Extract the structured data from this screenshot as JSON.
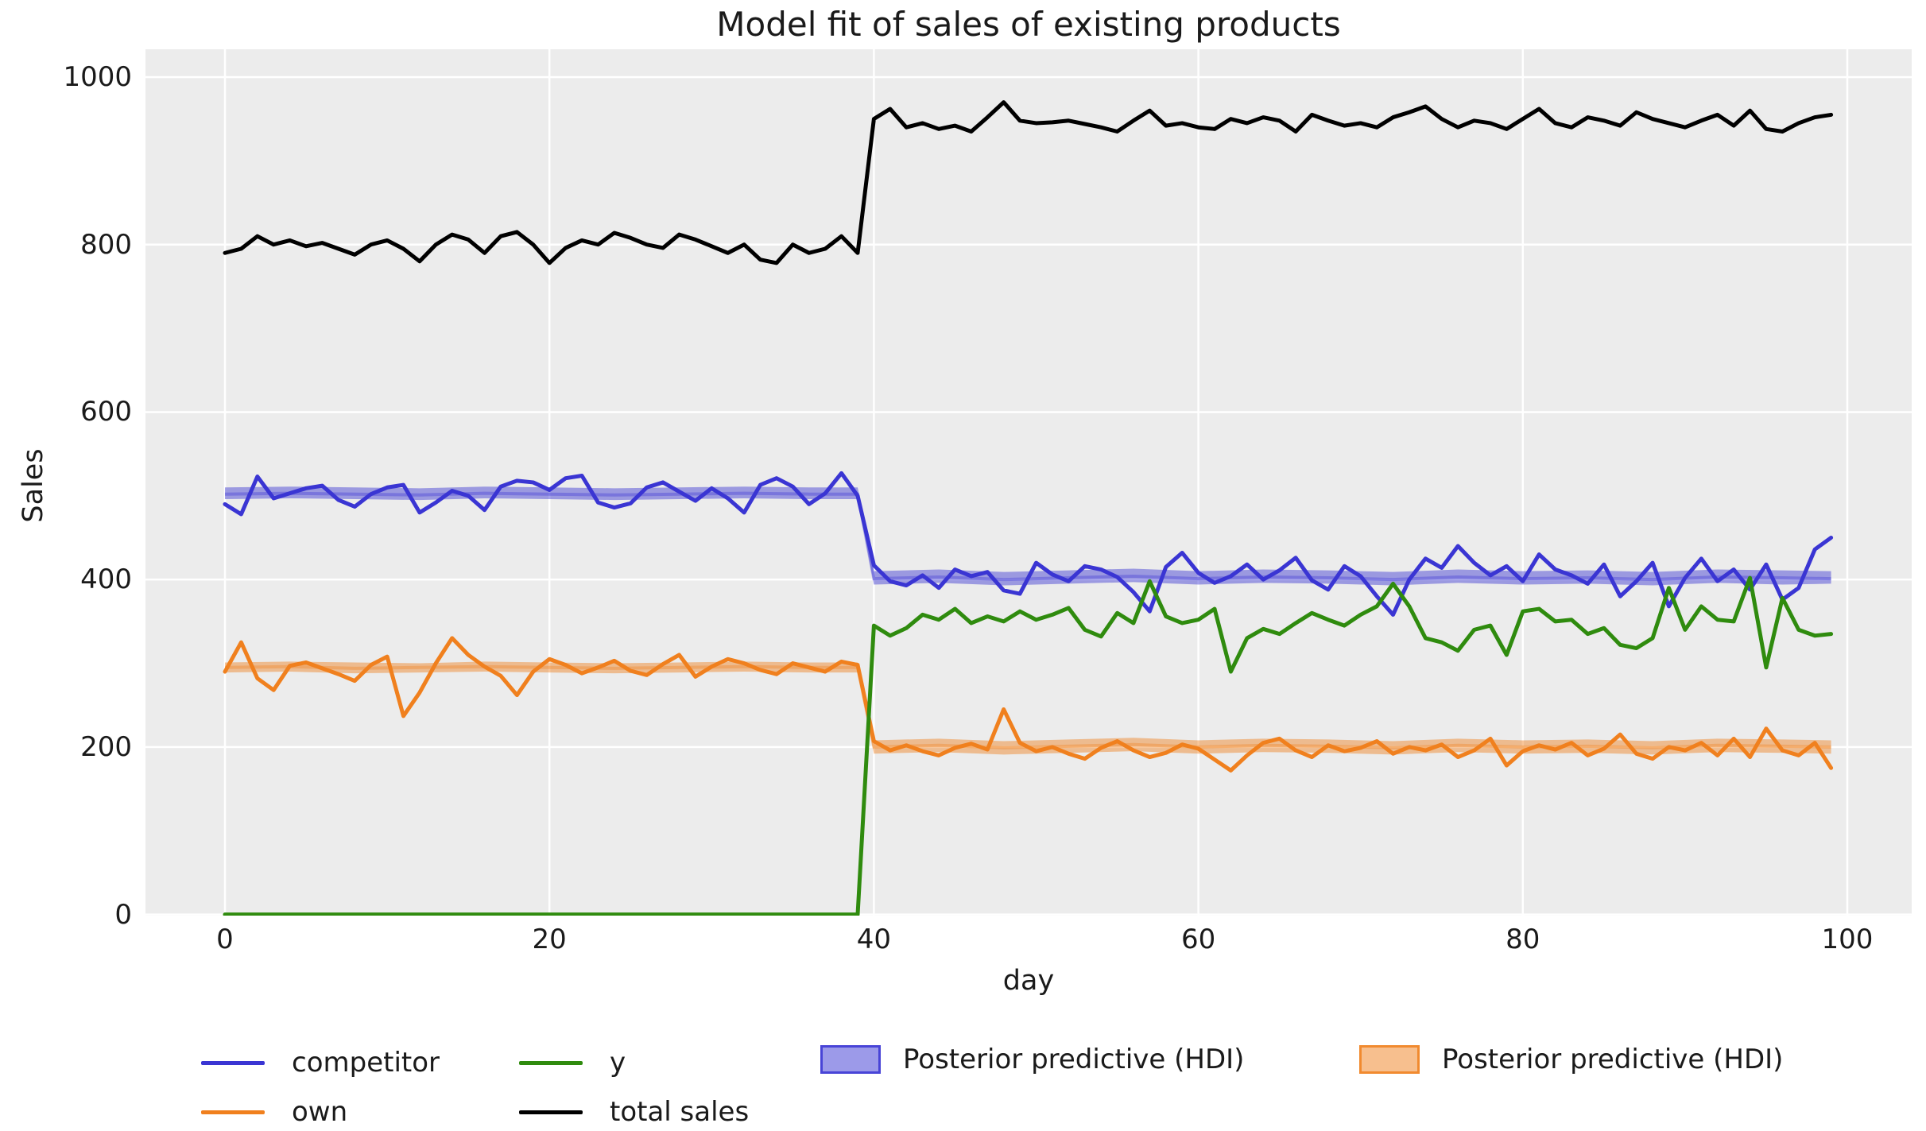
{
  "figure": {
    "background": "#ffffff",
    "plot_background": "#ececec",
    "grid_color": "#ffffff",
    "text_color": "#1a1a1a"
  },
  "chart_data": {
    "type": "line",
    "title": "Model fit of sales of existing products",
    "xlabel": "day",
    "ylabel": "Sales",
    "xlim": [
      -5,
      104
    ],
    "ylim": [
      -1,
      1033
    ],
    "x_ticks": [
      0,
      20,
      40,
      60,
      80,
      100
    ],
    "y_ticks": [
      0,
      200,
      400,
      600,
      800,
      1000
    ],
    "grid": true,
    "legend_position": "bottom",
    "x": [
      0,
      1,
      2,
      3,
      4,
      5,
      6,
      7,
      8,
      9,
      10,
      11,
      12,
      13,
      14,
      15,
      16,
      17,
      18,
      19,
      20,
      21,
      22,
      23,
      24,
      25,
      26,
      27,
      28,
      29,
      30,
      31,
      32,
      33,
      34,
      35,
      36,
      37,
      38,
      39,
      40,
      41,
      42,
      43,
      44,
      45,
      46,
      47,
      48,
      49,
      50,
      51,
      52,
      53,
      54,
      55,
      56,
      57,
      58,
      59,
      60,
      61,
      62,
      63,
      64,
      65,
      66,
      67,
      68,
      69,
      70,
      71,
      72,
      73,
      74,
      75,
      76,
      77,
      78,
      79,
      80,
      81,
      82,
      83,
      84,
      85,
      86,
      87,
      88,
      89,
      90,
      91,
      92,
      93,
      94,
      95,
      96,
      97,
      98,
      99
    ],
    "series": [
      {
        "name": "competitor",
        "color": "#3a35d3",
        "values": [
          490,
          478,
          523,
          497,
          503,
          509,
          512,
          495,
          487,
          502,
          510,
          513,
          480,
          492,
          506,
          500,
          483,
          511,
          518,
          516,
          507,
          521,
          524,
          492,
          486,
          491,
          510,
          516,
          505,
          494,
          509,
          497,
          480,
          513,
          521,
          511,
          490,
          503,
          527,
          500,
          417,
          398,
          393,
          405,
          390,
          412,
          404,
          409,
          387,
          383,
          420,
          406,
          398,
          416,
          412,
          403,
          385,
          362,
          415,
          432,
          408,
          396,
          404,
          418,
          400,
          411,
          426,
          399,
          388,
          416,
          404,
          380,
          358,
          400,
          425,
          414,
          440,
          420,
          405,
          416,
          398,
          430,
          412,
          405,
          395,
          418,
          380,
          398,
          420,
          368,
          402,
          425,
          398,
          412,
          388,
          418,
          376,
          390,
          436,
          450
        ]
      },
      {
        "name": "own",
        "color": "#f0801e",
        "values": [
          290,
          325,
          282,
          268,
          297,
          301,
          294,
          287,
          279,
          298,
          308,
          237,
          265,
          300,
          330,
          310,
          296,
          285,
          262,
          290,
          305,
          298,
          288,
          295,
          303,
          291,
          286,
          299,
          310,
          284,
          296,
          305,
          300,
          292,
          287,
          300,
          295,
          290,
          302,
          298,
          207,
          196,
          202,
          195,
          190,
          199,
          204,
          197,
          245,
          205,
          195,
          200,
          192,
          186,
          199,
          207,
          196,
          188,
          193,
          203,
          198,
          185,
          172,
          190,
          205,
          210,
          196,
          188,
          202,
          195,
          199,
          207,
          192,
          200,
          196,
          203,
          188,
          196,
          210,
          178,
          195,
          202,
          197,
          205,
          190,
          198,
          215,
          192,
          186,
          200,
          196,
          205,
          190,
          210,
          188,
          222,
          196,
          190,
          205,
          175
        ]
      },
      {
        "name": "y",
        "color": "#2f8b0e",
        "values": [
          0,
          0,
          0,
          0,
          0,
          0,
          0,
          0,
          0,
          0,
          0,
          0,
          0,
          0,
          0,
          0,
          0,
          0,
          0,
          0,
          0,
          0,
          0,
          0,
          0,
          0,
          0,
          0,
          0,
          0,
          0,
          0,
          0,
          0,
          0,
          0,
          0,
          0,
          0,
          0,
          345,
          333,
          342,
          358,
          352,
          365,
          348,
          356,
          350,
          362,
          352,
          358,
          366,
          340,
          332,
          360,
          348,
          398,
          356,
          348,
          352,
          365,
          290,
          330,
          341,
          335,
          348,
          360,
          352,
          345,
          358,
          368,
          395,
          368,
          330,
          325,
          315,
          340,
          345,
          310,
          362,
          365,
          350,
          352,
          335,
          342,
          322,
          318,
          330,
          390,
          340,
          368,
          352,
          350,
          402,
          295,
          378,
          340,
          333,
          335
        ]
      },
      {
        "name": "total sales",
        "color": "#000000",
        "values": [
          790,
          795,
          810,
          800,
          805,
          798,
          802,
          795,
          788,
          800,
          805,
          795,
          780,
          800,
          812,
          806,
          790,
          810,
          815,
          800,
          778,
          796,
          805,
          800,
          814,
          808,
          800,
          796,
          812,
          806,
          798,
          790,
          800,
          782,
          778,
          800,
          790,
          795,
          810,
          790,
          950,
          962,
          940,
          945,
          938,
          942,
          935,
          952,
          970,
          948,
          945,
          946,
          948,
          944,
          940,
          935,
          948,
          960,
          942,
          945,
          940,
          938,
          950,
          945,
          952,
          948,
          935,
          955,
          948,
          942,
          945,
          940,
          952,
          958,
          965,
          950,
          940,
          948,
          945,
          938,
          950,
          962,
          945,
          940,
          952,
          948,
          942,
          958,
          950,
          945,
          940,
          948,
          955,
          942,
          960,
          938,
          935,
          945,
          952,
          955
        ]
      }
    ],
    "bands": [
      {
        "name": "Posterior predictive (HDI) competitor",
        "color": "#3a35d3",
        "days": [
          0,
          4,
          8,
          12,
          16,
          20,
          24,
          28,
          32,
          36,
          39,
          40,
          44,
          48,
          52,
          56,
          60,
          64,
          68,
          72,
          76,
          80,
          84,
          88,
          92,
          96,
          99
        ],
        "lo": [
          496,
          497,
          496,
          495,
          497,
          496,
          495,
          496,
          497,
          496,
          496,
          394,
          396,
          393,
          395,
          397,
          394,
          396,
          395,
          393,
          396,
          394,
          395,
          393,
          396,
          394,
          395
        ],
        "hi": [
          510,
          511,
          510,
          509,
          511,
          510,
          509,
          510,
          511,
          510,
          510,
          410,
          412,
          409,
          411,
          413,
          410,
          412,
          411,
          409,
          412,
          410,
          411,
          409,
          412,
          411,
          410
        ],
        "mean": [
          502,
          503,
          502,
          501,
          503,
          502,
          501,
          502,
          503,
          502,
          502,
          401,
          403,
          400,
          402,
          404,
          401,
          403,
          402,
          400,
          403,
          401,
          402,
          400,
          403,
          402,
          401
        ]
      },
      {
        "name": "Posterior predictive (HDI) own",
        "color": "#f0801e",
        "days": [
          0,
          4,
          8,
          12,
          16,
          20,
          24,
          28,
          32,
          36,
          39,
          40,
          44,
          48,
          52,
          56,
          60,
          64,
          68,
          72,
          76,
          80,
          84,
          88,
          92,
          96,
          99
        ],
        "lo": [
          289,
          290,
          288,
          289,
          290,
          289,
          288,
          289,
          290,
          289,
          289,
          192,
          194,
          191,
          193,
          195,
          192,
          194,
          193,
          191,
          194,
          192,
          193,
          191,
          194,
          193,
          192
        ],
        "hi": [
          301,
          302,
          301,
          300,
          302,
          301,
          300,
          301,
          302,
          301,
          301,
          208,
          210,
          207,
          209,
          211,
          208,
          210,
          209,
          207,
          210,
          208,
          209,
          207,
          210,
          209,
          208
        ],
        "mean": [
          295,
          296,
          294,
          295,
          296,
          295,
          294,
          295,
          296,
          295,
          295,
          200,
          202,
          199,
          201,
          203,
          200,
          202,
          201,
          199,
          202,
          200,
          201,
          199,
          202,
          201,
          200
        ]
      }
    ],
    "legend": [
      {
        "label": "competitor",
        "color": "#3a35d3",
        "type": "line"
      },
      {
        "label": "own",
        "color": "#f0801e",
        "type": "line"
      },
      {
        "label": "y",
        "color": "#2f8b0e",
        "type": "line"
      },
      {
        "label": "total sales",
        "color": "#000000",
        "type": "line"
      },
      {
        "label": "Posterior predictive (HDI)",
        "color": "#3a35d3",
        "type": "patch"
      },
      {
        "label": "Posterior predictive (HDI)",
        "color": "#f0801e",
        "type": "patch"
      }
    ]
  }
}
